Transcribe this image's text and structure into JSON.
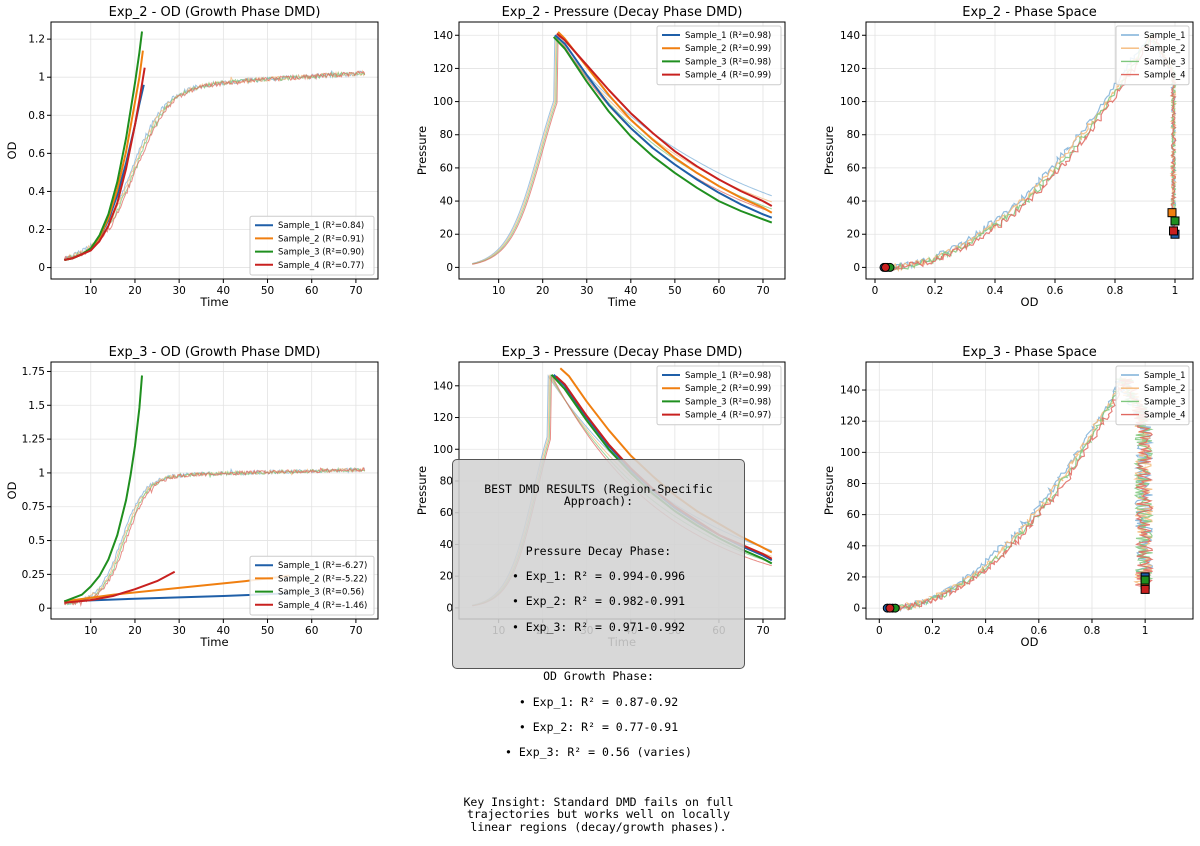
{
  "colors": {
    "sample_1": "#1f5fa8",
    "sample_2": "#f07f10",
    "sample_3": "#1f8f1f",
    "sample_4": "#c8201f",
    "raw_1": "#7eb0d8",
    "raw_2": "#f5b878",
    "raw_3": "#7fc87f",
    "raw_4": "#e06860"
  },
  "chart_data": [
    {
      "id": "exp2_od",
      "type": "line",
      "title": "Exp_2 - OD (Growth Phase DMD)",
      "xlabel": "Time",
      "ylabel": "OD",
      "xlim": [
        1,
        75
      ],
      "ylim": [
        -0.06,
        1.29
      ],
      "xticks": [
        10,
        20,
        30,
        40,
        50,
        60,
        70
      ],
      "yticks": [
        0.0,
        0.2,
        0.4,
        0.6,
        0.8,
        1.0,
        1.2
      ],
      "grid": true,
      "legend_position": "lower-right",
      "raw": {
        "x_start": 4,
        "x_end": 72,
        "baseline": 0.05,
        "growth": 0.255,
        "midpoint": 19.3,
        "plateau": 0.92,
        "final": 1.0,
        "noise": 0.012
      },
      "series": [
        {
          "name": "Sample_1 (R²=0.84)",
          "x": [
            4,
            6,
            8,
            10,
            12,
            14,
            16,
            18,
            20,
            21,
            22
          ],
          "y": [
            0.04,
            0.05,
            0.07,
            0.1,
            0.16,
            0.25,
            0.38,
            0.55,
            0.75,
            0.86,
            0.96
          ]
        },
        {
          "name": "Sample_2 (R²=0.91)",
          "x": [
            4,
            6,
            8,
            10,
            12,
            14,
            16,
            18,
            20,
            21,
            21.8
          ],
          "y": [
            0.04,
            0.05,
            0.07,
            0.1,
            0.16,
            0.26,
            0.41,
            0.61,
            0.87,
            1.0,
            1.14
          ]
        },
        {
          "name": "Sample_3 (R²=0.90)",
          "x": [
            4,
            6,
            8,
            10,
            12,
            14,
            16,
            18,
            20,
            21,
            21.6
          ],
          "y": [
            0.04,
            0.05,
            0.07,
            0.1,
            0.17,
            0.28,
            0.45,
            0.68,
            0.97,
            1.13,
            1.24
          ]
        },
        {
          "name": "Sample_4 (R²=0.77)",
          "x": [
            4,
            6,
            8,
            10,
            12,
            14,
            16,
            18,
            20,
            21,
            22.2
          ],
          "y": [
            0.04,
            0.05,
            0.07,
            0.09,
            0.14,
            0.22,
            0.34,
            0.52,
            0.75,
            0.88,
            1.05
          ]
        }
      ]
    },
    {
      "id": "exp2_pressure",
      "type": "line",
      "title": "Exp_2 - Pressure (Decay Phase DMD)",
      "xlabel": "Time",
      "ylabel": "Pressure",
      "xlim": [
        1,
        75
      ],
      "ylim": [
        -7,
        148
      ],
      "xticks": [
        10,
        20,
        30,
        40,
        50,
        60,
        70
      ],
      "yticks": [
        0,
        20,
        40,
        60,
        80,
        100,
        120,
        140
      ],
      "grid": true,
      "legend_position": "upper-right",
      "raw": {
        "x_start": 4,
        "peak_time": 23,
        "peak": 140,
        "rise": 0.27,
        "midpoint": 19.5,
        "decay": 0.03,
        "offset": 8,
        "noise": 0.0
      },
      "series": [
        {
          "name": "Sample_1 (R²=0.98)",
          "x": [
            22.8,
            25,
            30,
            35,
            40,
            45,
            50,
            55,
            60,
            65,
            70,
            72
          ],
          "y": [
            140,
            135,
            116,
            98,
            84,
            72,
            62,
            53,
            45,
            38,
            32,
            30
          ]
        },
        {
          "name": "Sample_2 (R²=0.99)",
          "x": [
            23.5,
            25,
            30,
            35,
            40,
            45,
            50,
            55,
            60,
            65,
            70,
            72
          ],
          "y": [
            142,
            138,
            121,
            104,
            89,
            77,
            66,
            57,
            49,
            42,
            36,
            33
          ]
        },
        {
          "name": "Sample_3 (R²=0.98)",
          "x": [
            22.5,
            25,
            30,
            35,
            40,
            45,
            50,
            55,
            60,
            65,
            70,
            72
          ],
          "y": [
            139,
            132,
            112,
            94,
            79,
            67,
            57,
            48,
            40,
            34,
            29,
            27
          ]
        },
        {
          "name": "Sample_4 (R²=0.99)",
          "x": [
            23.2,
            25,
            30,
            35,
            40,
            45,
            50,
            55,
            60,
            65,
            70,
            72
          ],
          "y": [
            141,
            137,
            122,
            107,
            93,
            81,
            70,
            61,
            53,
            46,
            40,
            37
          ]
        }
      ]
    },
    {
      "id": "exp2_phase",
      "type": "scatter",
      "title": "Exp_2 - Phase Space",
      "xlabel": "OD",
      "ylabel": "Pressure",
      "xlim": [
        -0.03,
        1.06
      ],
      "ylim": [
        -7,
        148
      ],
      "xticks": [
        0.0,
        0.2,
        0.4,
        0.6,
        0.8,
        1.0
      ],
      "yticks": [
        0,
        20,
        40,
        60,
        80,
        100,
        120,
        140
      ],
      "grid": true,
      "legend_position": "upper-right",
      "start_points": [
        [
          0.03,
          0
        ],
        [
          0.04,
          0
        ],
        [
          0.05,
          0
        ],
        [
          0.035,
          0
        ]
      ],
      "end_points": [
        [
          1.0,
          20
        ],
        [
          0.99,
          33
        ],
        [
          1.0,
          28
        ],
        [
          0.995,
          22
        ]
      ],
      "series": [
        {
          "name": "Sample_1"
        },
        {
          "name": "Sample_2"
        },
        {
          "name": "Sample_3"
        },
        {
          "name": "Sample_4"
        }
      ]
    },
    {
      "id": "exp3_od",
      "type": "line",
      "title": "Exp_3 - OD (Growth Phase DMD)",
      "xlabel": "Time",
      "ylabel": "OD",
      "xlim": [
        1,
        75
      ],
      "ylim": [
        -0.08,
        1.82
      ],
      "xticks": [
        10,
        20,
        30,
        40,
        50,
        60,
        70
      ],
      "yticks": [
        0.0,
        0.25,
        0.5,
        0.75,
        1.0,
        1.25,
        1.5,
        1.75
      ],
      "grid": true,
      "legend_position": "lower-right",
      "raw": {
        "x_start": 4,
        "x_end": 72,
        "baseline": 0.05,
        "growth": 0.38,
        "midpoint": 17.5,
        "plateau": 0.95,
        "final": 1.0,
        "noise": 0.014
      },
      "series": [
        {
          "name": "Sample_1 (R²=-6.27)",
          "x": [
            4,
            20,
            40,
            55
          ],
          "y": [
            0.05,
            0.07,
            0.09,
            0.11
          ]
        },
        {
          "name": "Sample_2 (R²=-5.22)",
          "x": [
            4,
            15,
            30,
            45,
            55
          ],
          "y": [
            0.05,
            0.1,
            0.15,
            0.2,
            0.24
          ]
        },
        {
          "name": "Sample_3 (R²=0.56)",
          "x": [
            4,
            8,
            10,
            12,
            14,
            16,
            18,
            19,
            20,
            21,
            21.6
          ],
          "y": [
            0.05,
            0.1,
            0.16,
            0.24,
            0.36,
            0.54,
            0.8,
            0.98,
            1.2,
            1.48,
            1.72
          ]
        },
        {
          "name": "Sample_4 (R²=-1.46)",
          "x": [
            4,
            10,
            15,
            20,
            25,
            29
          ],
          "y": [
            0.04,
            0.06,
            0.09,
            0.14,
            0.2,
            0.27
          ]
        }
      ]
    },
    {
      "id": "exp3_pressure",
      "type": "line",
      "title": "Exp_3 - Pressure (Decay Phase DMD)",
      "xlabel": "Time",
      "ylabel": "Pressure",
      "xlim": [
        1,
        75
      ],
      "ylim": [
        -7,
        155
      ],
      "xticks": [
        10,
        20,
        30,
        40,
        50,
        60,
        70
      ],
      "yticks": [
        0,
        20,
        40,
        60,
        80,
        100,
        120,
        140
      ],
      "grid": true,
      "legend_position": "upper-right",
      "raw": {
        "x_start": 4,
        "peak_time": 21.5,
        "peak": 147,
        "rise": 0.32,
        "midpoint": 18.3,
        "decay": 0.034,
        "offset": 6,
        "noise": 0.0
      },
      "series": [
        {
          "name": "Sample_1 (R²=0.98)",
          "x": [
            22.5,
            25,
            30,
            35,
            40,
            45,
            50,
            55,
            60,
            65,
            70,
            72
          ],
          "y": [
            147,
            140,
            120,
            102,
            87,
            74,
            63,
            54,
            46,
            39,
            33,
            30
          ]
        },
        {
          "name": "Sample_2 (R²=0.99)",
          "x": [
            24,
            26,
            30,
            35,
            40,
            45,
            50,
            55,
            60,
            65,
            70,
            72
          ],
          "y": [
            151,
            146,
            130,
            112,
            96,
            83,
            71,
            61,
            53,
            45,
            38,
            35
          ]
        },
        {
          "name": "Sample_3 (R²=0.98)",
          "x": [
            22,
            25,
            30,
            35,
            40,
            45,
            50,
            55,
            60,
            65,
            70,
            72
          ],
          "y": [
            147,
            138,
            118,
            100,
            85,
            72,
            61,
            52,
            44,
            37,
            31,
            28
          ]
        },
        {
          "name": "Sample_4 (R²=0.97)",
          "x": [
            23,
            25,
            30,
            35,
            40,
            45,
            50,
            55,
            60,
            65,
            70,
            72
          ],
          "y": [
            146,
            141,
            121,
            103,
            88,
            75,
            64,
            55,
            46,
            40,
            34,
            31
          ]
        }
      ]
    },
    {
      "id": "exp3_phase",
      "type": "scatter",
      "title": "Exp_3 - Phase Space",
      "xlabel": "OD",
      "ylabel": "Pressure",
      "xlim": [
        -0.05,
        1.18
      ],
      "ylim": [
        -7,
        158
      ],
      "xticks": [
        0.0,
        0.2,
        0.4,
        0.6,
        0.8,
        1.0
      ],
      "yticks": [
        0,
        20,
        40,
        60,
        80,
        100,
        120,
        140
      ],
      "grid": true,
      "legend_position": "upper-right",
      "start_points": [
        [
          0.03,
          0
        ],
        [
          0.05,
          0
        ],
        [
          0.06,
          0
        ],
        [
          0.04,
          0
        ]
      ],
      "end_points": [
        [
          1.0,
          20
        ],
        [
          1.0,
          15
        ],
        [
          1.0,
          18
        ],
        [
          1.0,
          12
        ]
      ],
      "series": [
        {
          "name": "Sample_1"
        },
        {
          "name": "Sample_2"
        },
        {
          "name": "Sample_3"
        },
        {
          "name": "Sample_4"
        }
      ]
    }
  ],
  "summary": {
    "title": "BEST DMD RESULTS (Region-Specific Approach):",
    "pressure_heading": "Pressure Decay Phase:",
    "pressure_lines": [
      "• Exp_1: R² = 0.994-0.996",
      "• Exp_2: R² = 0.982-0.991",
      "• Exp_3: R² = 0.971-0.992"
    ],
    "od_heading": "OD Growth Phase:",
    "od_lines": [
      "• Exp_1: R² = 0.87-0.92",
      "• Exp_2: R² = 0.77-0.91",
      "• Exp_3: R² = 0.56 (varies)"
    ],
    "insight": "Key Insight: Standard DMD fails on full\ntrajectories but works well on locally\nlinear regions (decay/growth phases)."
  }
}
